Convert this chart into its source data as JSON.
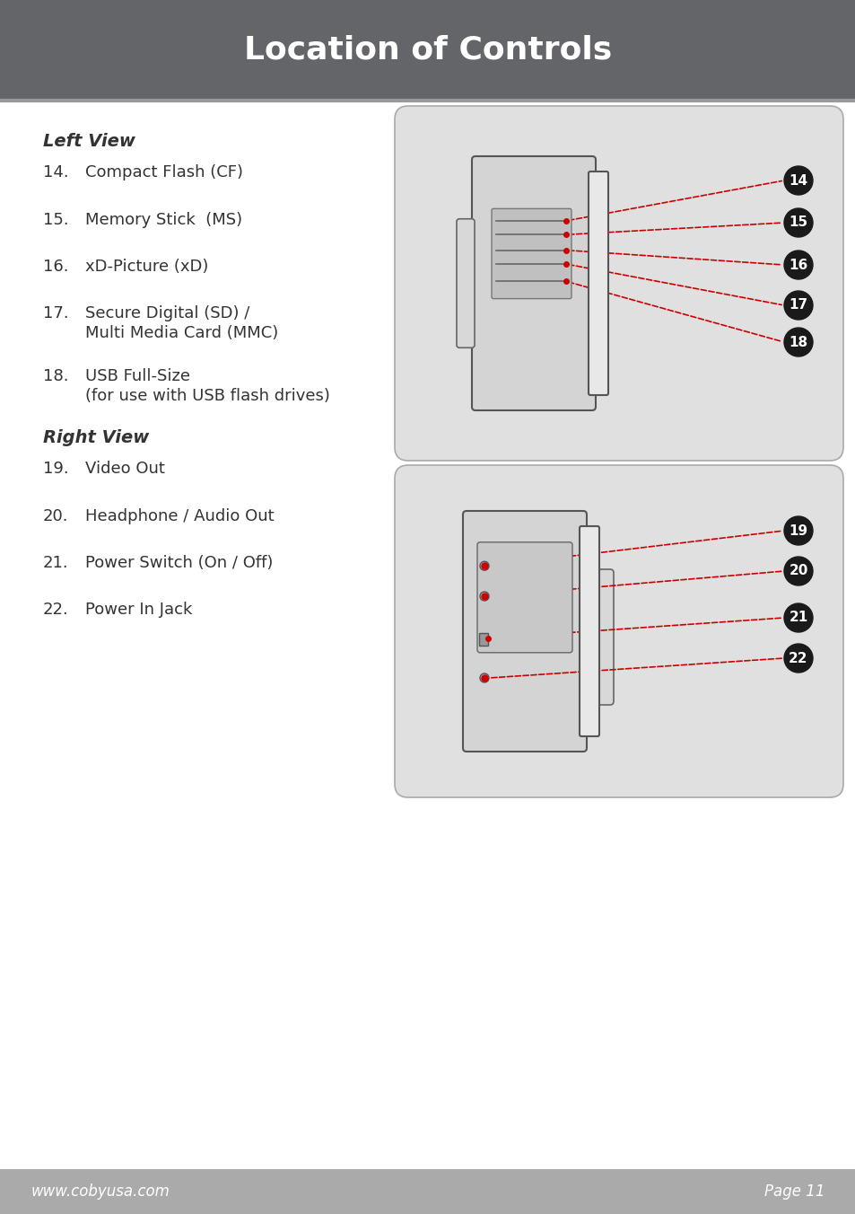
{
  "title": "Location of Controls",
  "title_bg": "#636568",
  "title_color": "#ffffff",
  "title_fontsize": 26,
  "page_bg": "#ffffff",
  "footer_bg": "#aaaaaa",
  "footer_left": "www.cobyusa.com",
  "footer_right": "Page 11",
  "footer_color": "#ffffff",
  "separator_color": "#bbbbbb",
  "left_view_title": "Left View",
  "left_items": [
    [
      "14.",
      "Compact Flash (CF)",
      ""
    ],
    [
      "15.",
      "Memory Stick  (MS)",
      ""
    ],
    [
      "16.",
      "xD-Picture (xD)",
      ""
    ],
    [
      "17.",
      "Secure Digital (SD) /",
      "Multi Media Card (MMC)"
    ],
    [
      "18.",
      "USB Full-Size",
      "(for use with USB flash drives)"
    ]
  ],
  "right_view_title": "Right View",
  "right_items": [
    [
      "19.",
      "Video Out",
      ""
    ],
    [
      "20.",
      "Headphone / Audio Out",
      ""
    ],
    [
      "21.",
      "Power Switch (On / Off)",
      ""
    ],
    [
      "22.",
      "Power In Jack",
      ""
    ]
  ],
  "label_color": "#333333",
  "number_color": "#333333",
  "badge_bg": "#1a1a1a",
  "badge_fg": "#ffffff",
  "line_color": "#cc0000",
  "dot_color": "#cc0000",
  "device_bg": "#e0e0e0",
  "device_border": "#888888",
  "device_dark": "#555555",
  "device_mid": "#cccccc",
  "device_light": "#dddddd"
}
